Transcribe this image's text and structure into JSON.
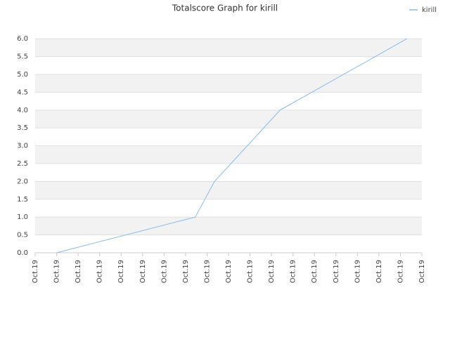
{
  "chart_data": {
    "type": "line",
    "title": "Totalscore Graph for kirill",
    "x": [
      1,
      7.45,
      8.35,
      11.4,
      17.3
    ],
    "series": [
      {
        "name": "kirill",
        "color": "#88bbee",
        "values": [
          0,
          1,
          2,
          4,
          6
        ]
      }
    ],
    "xlim": [
      0,
      18
    ],
    "xticks": [
      {
        "value": 0,
        "label": "Oct.19"
      },
      {
        "value": 1,
        "label": "Oct.19"
      },
      {
        "value": 2,
        "label": "Oct.19"
      },
      {
        "value": 3,
        "label": "Oct.19"
      },
      {
        "value": 4,
        "label": "Oct.19"
      },
      {
        "value": 5,
        "label": "Oct.19"
      },
      {
        "value": 6,
        "label": "Oct.19"
      },
      {
        "value": 7,
        "label": "Oct.19"
      },
      {
        "value": 8,
        "label": "Oct.19"
      },
      {
        "value": 9,
        "label": "Oct.19"
      },
      {
        "value": 10,
        "label": "Oct.19"
      },
      {
        "value": 11,
        "label": "Oct.19"
      },
      {
        "value": 12,
        "label": "Oct.19"
      },
      {
        "value": 13,
        "label": "Oct.19"
      },
      {
        "value": 14,
        "label": "Oct.19"
      },
      {
        "value": 15,
        "label": "Oct.19"
      },
      {
        "value": 16,
        "label": "Oct.19"
      },
      {
        "value": 17,
        "label": "Oct.19"
      },
      {
        "value": 18,
        "label": "Oct.19"
      }
    ],
    "ylim": [
      0,
      6.3
    ],
    "yticks": [
      {
        "value": 0,
        "label": "0.0"
      },
      0.5,
      {
        "value": 1,
        "label": "1.0"
      },
      1.5,
      {
        "value": 2,
        "label": "2.0"
      },
      2.5,
      {
        "value": 3,
        "label": "3.0"
      },
      3.5,
      {
        "value": 4,
        "label": "4.0"
      },
      4.5,
      {
        "value": 5,
        "label": "5.0"
      },
      5.5,
      {
        "value": 6,
        "label": "6.0"
      }
    ],
    "grid": true,
    "legend": "top-right"
  }
}
